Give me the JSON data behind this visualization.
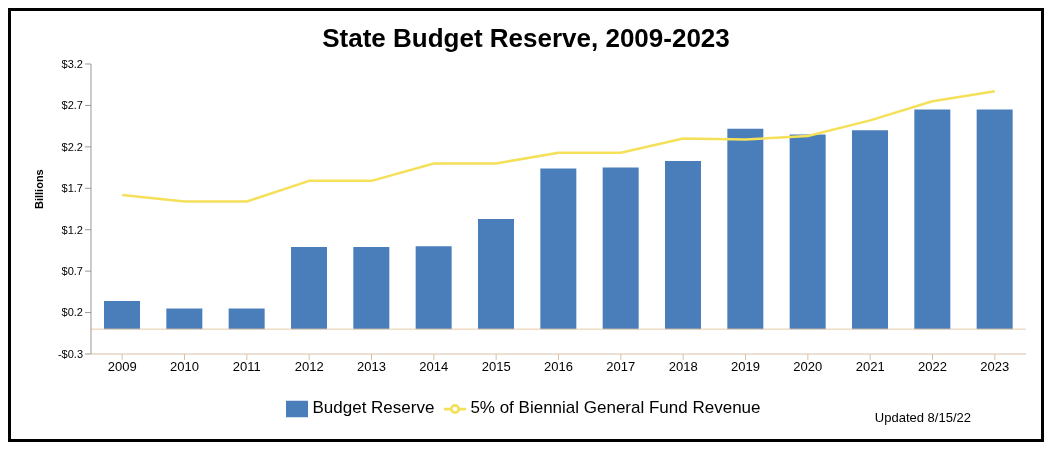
{
  "chart_data": {
    "type": "bar",
    "title": "State Budget Reserve, 2009-2023",
    "ylabel": "Billions",
    "categories": [
      "2009",
      "2010",
      "2011",
      "2012",
      "2013",
      "2014",
      "2015",
      "2016",
      "2017",
      "2018",
      "2019",
      "2020",
      "2021",
      "2022",
      "2023"
    ],
    "series": [
      {
        "name": "Budget Reserve",
        "color": "#4a7ebb",
        "values": [
          0.34,
          0.25,
          0.25,
          0.99,
          0.99,
          1.0,
          1.33,
          1.94,
          1.95,
          2.03,
          2.42,
          2.35,
          2.4,
          2.65,
          2.65
        ]
      },
      {
        "name": "5% of Biennial General Fund Revenue",
        "type": "line",
        "color": "#f5e05a",
        "values": [
          1.62,
          1.54,
          1.54,
          1.79,
          1.79,
          2.0,
          2.0,
          2.13,
          2.13,
          2.3,
          2.29,
          2.33,
          2.52,
          2.75,
          2.87
        ]
      }
    ],
    "ylim": [
      -0.3,
      3.2
    ],
    "yticks": [
      {
        "value": -0.3,
        "label": "-$0.3"
      },
      {
        "value": 0.2,
        "label": "$0.2"
      },
      {
        "value": 0.7,
        "label": "$0.7"
      },
      {
        "value": 1.2,
        "label": "$1.2"
      },
      {
        "value": 1.7,
        "label": "$1.7"
      },
      {
        "value": 2.2,
        "label": "$2.2"
      },
      {
        "value": 2.7,
        "label": "$2.7"
      },
      {
        "value": 3.2,
        "label": "$3.2"
      }
    ],
    "ref_lines": [
      {
        "axis": "y",
        "value": 0,
        "color": "#e8c9a8"
      }
    ],
    "grid": false,
    "legend": "bottom",
    "marker": "none",
    "annotations": [
      "Updated 8/15/22"
    ]
  }
}
